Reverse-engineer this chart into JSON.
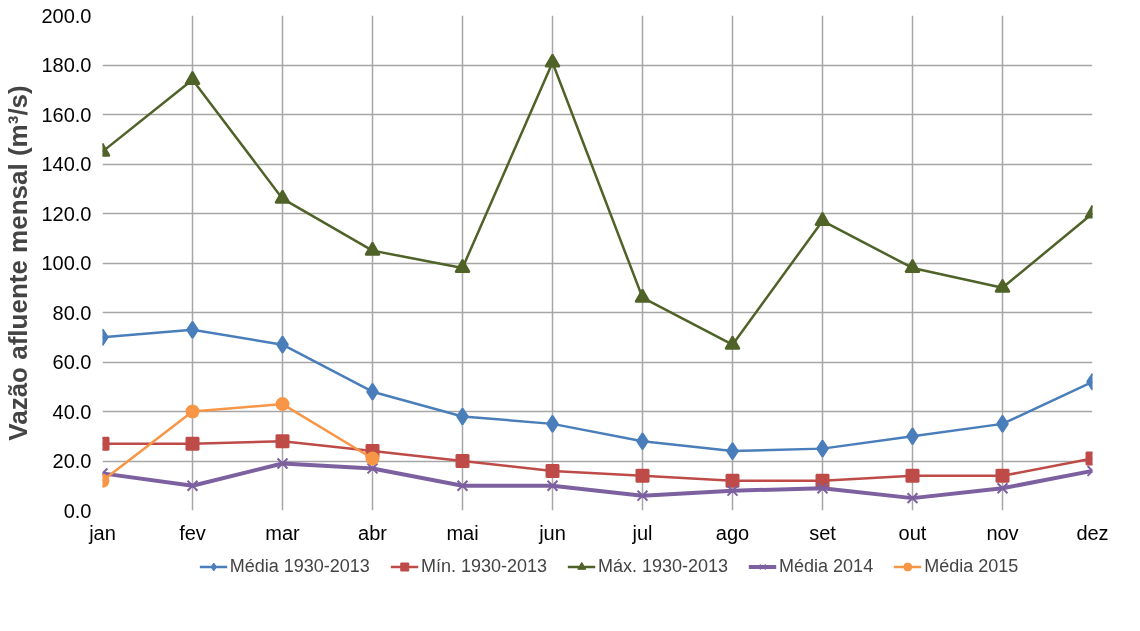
{
  "chart_data": {
    "type": "line",
    "ylabel": "Vazão afluente mensal (m³/s)",
    "categories": [
      "jan",
      "fev",
      "mar",
      "abr",
      "mai",
      "jun",
      "jul",
      "ago",
      "set",
      "out",
      "nov",
      "dez"
    ],
    "series": [
      {
        "name": "Média 1930-2013",
        "color": "#4a7ebb",
        "marker": "diamond",
        "values": [
          70,
          73,
          67,
          48,
          38,
          35,
          28,
          24,
          25,
          30,
          35,
          52
        ]
      },
      {
        "name": "Mín. 1930-2013",
        "color": "#be4b48",
        "marker": "square",
        "values": [
          27,
          27,
          28,
          24,
          20,
          16,
          14,
          12,
          12,
          14,
          14,
          21
        ]
      },
      {
        "name": "Máx. 1930-2013",
        "color": "#4f6228",
        "marker": "triangle",
        "values": [
          145,
          174,
          126,
          105,
          98,
          181,
          86,
          67,
          117,
          98,
          90,
          120
        ]
      },
      {
        "name": "Média 2014",
        "color": "#7d60a0",
        "marker": "cross",
        "values": [
          15,
          10,
          19,
          17,
          10,
          10,
          6,
          8,
          9,
          5,
          9,
          16
        ]
      },
      {
        "name": "Média 2015",
        "color": "#f79646",
        "marker": "circle",
        "values": [
          12,
          40,
          43,
          21,
          null,
          null,
          null,
          null,
          null,
          null,
          null,
          null
        ]
      }
    ],
    "ylim": [
      0,
      200
    ],
    "yticks": [
      {
        "value": 0,
        "label": "0.0"
      },
      {
        "value": 20,
        "label": "20.0"
      },
      {
        "value": 40,
        "label": "40.0"
      },
      {
        "value": 60,
        "label": "60.0"
      },
      {
        "value": 80,
        "label": "80.0"
      },
      {
        "value": 100,
        "label": "100.0"
      },
      {
        "value": 120,
        "label": "120.0"
      },
      {
        "value": 140,
        "label": "140.0"
      },
      {
        "value": 160,
        "label": "160.0"
      },
      {
        "value": 180,
        "label": "180.0"
      },
      {
        "value": 200,
        "label": "200.0"
      }
    ],
    "grid": true,
    "legend": "bottom",
    "line_style": "solid"
  }
}
